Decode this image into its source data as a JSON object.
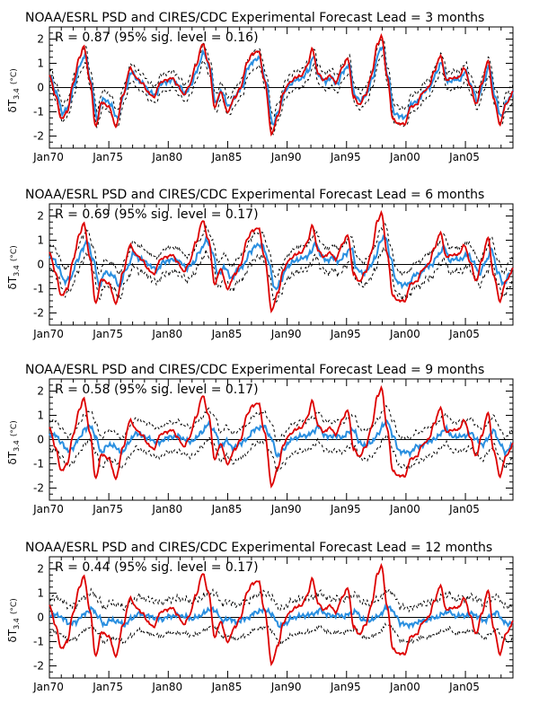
{
  "chart_data": [
    {
      "type": "line",
      "title": "NOAA/ESRL PSD and CIRES/CDC Experimental Forecast Lead = 3 months",
      "annotation": "R = 0.87 (95% sig. level = 0.16)",
      "ylabel_main": "δT",
      "ylabel_sub": "3.4",
      "ylabel_unit": "(°C)",
      "xlabel": "",
      "xlim": [
        1970,
        2009
      ],
      "ylim": [
        -2.5,
        2.5
      ],
      "x_ticks": [
        1970,
        1975,
        1980,
        1985,
        1990,
        1995,
        2000,
        2005
      ],
      "x_tick_labels": [
        "Jan70",
        "Jan75",
        "Jan80",
        "Jan85",
        "Jan90",
        "Jan95",
        "Jan00",
        "Jan05"
      ],
      "y_ticks": [
        -2,
        -1,
        0,
        1,
        2
      ],
      "y_tick_labels": [
        "-2",
        "-1",
        "0",
        "1",
        "2"
      ],
      "series": [
        {
          "role": "observed",
          "color": "#dd0000",
          "style": "solid"
        },
        {
          "role": "forecast",
          "color": "#2a8fe0",
          "style": "solid"
        },
        {
          "role": "forecast_spread",
          "color": "#000000",
          "style": "dashed"
        }
      ]
    },
    {
      "type": "line",
      "title": "NOAA/ESRL PSD and CIRES/CDC Experimental Forecast Lead = 6 months",
      "annotation": "R = 0.69 (95% sig. level = 0.17)",
      "ylabel_main": "δT",
      "ylabel_sub": "3.4",
      "ylabel_unit": "(°C)",
      "xlabel": "",
      "xlim": [
        1970,
        2009
      ],
      "ylim": [
        -2.5,
        2.5
      ],
      "x_ticks": [
        1970,
        1975,
        1980,
        1985,
        1990,
        1995,
        2000,
        2005
      ],
      "x_tick_labels": [
        "Jan70",
        "Jan75",
        "Jan80",
        "Jan85",
        "Jan90",
        "Jan95",
        "Jan00",
        "Jan05"
      ],
      "y_ticks": [
        -2,
        -1,
        0,
        1,
        2
      ],
      "y_tick_labels": [
        "-2",
        "-1",
        "0",
        "1",
        "2"
      ],
      "series": [
        {
          "role": "observed",
          "color": "#dd0000",
          "style": "solid"
        },
        {
          "role": "forecast",
          "color": "#2a8fe0",
          "style": "solid"
        },
        {
          "role": "forecast_spread",
          "color": "#000000",
          "style": "dashed"
        }
      ]
    },
    {
      "type": "line",
      "title": "NOAA/ESRL PSD and CIRES/CDC Experimental Forecast Lead = 9 months",
      "annotation": "R = 0.58 (95% sig. level = 0.17)",
      "ylabel_main": "δT",
      "ylabel_sub": "3.4",
      "ylabel_unit": "(°C)",
      "xlabel": "",
      "xlim": [
        1970,
        2009
      ],
      "ylim": [
        -2.5,
        2.5
      ],
      "x_ticks": [
        1970,
        1975,
        1980,
        1985,
        1990,
        1995,
        2000,
        2005
      ],
      "x_tick_labels": [
        "Jan70",
        "Jan75",
        "Jan80",
        "Jan85",
        "Jan90",
        "Jan95",
        "Jan00",
        "Jan05"
      ],
      "y_ticks": [
        -2,
        -1,
        0,
        1,
        2
      ],
      "y_tick_labels": [
        "-2",
        "-1",
        "0",
        "1",
        "2"
      ],
      "series": [
        {
          "role": "observed",
          "color": "#dd0000",
          "style": "solid"
        },
        {
          "role": "forecast",
          "color": "#2a8fe0",
          "style": "solid"
        },
        {
          "role": "forecast_spread",
          "color": "#000000",
          "style": "dashed"
        }
      ]
    },
    {
      "type": "line",
      "title": "NOAA/ESRL PSD and CIRES/CDC Experimental Forecast Lead = 12 months",
      "annotation": "R = 0.44 (95% sig. level = 0.17)",
      "ylabel_main": "δT",
      "ylabel_sub": "3.4",
      "ylabel_unit": "(°C)",
      "xlabel": "",
      "xlim": [
        1970,
        2009
      ],
      "ylim": [
        -2.5,
        2.5
      ],
      "x_ticks": [
        1970,
        1975,
        1980,
        1985,
        1990,
        1995,
        2000,
        2005
      ],
      "x_tick_labels": [
        "Jan70",
        "Jan75",
        "Jan80",
        "Jan85",
        "Jan90",
        "Jan95",
        "Jan00",
        "Jan05"
      ],
      "y_ticks": [
        -2,
        -1,
        0,
        1,
        2
      ],
      "y_tick_labels": [
        "-2",
        "-1",
        "0",
        "1",
        "2"
      ],
      "series": [
        {
          "role": "observed",
          "color": "#dd0000",
          "style": "solid"
        },
        {
          "role": "forecast",
          "color": "#2a8fe0",
          "style": "solid"
        },
        {
          "role": "forecast_spread",
          "color": "#000000",
          "style": "dashed"
        }
      ]
    }
  ],
  "observed": {
    "anchors": [
      [
        1970.0,
        0.5
      ],
      [
        1970.5,
        -0.3
      ],
      [
        1971.0,
        -1.3
      ],
      [
        1971.5,
        -1.0
      ],
      [
        1972.0,
        0.2
      ],
      [
        1972.5,
        1.2
      ],
      [
        1972.9,
        1.7
      ],
      [
        1973.4,
        0.3
      ],
      [
        1973.9,
        -1.6
      ],
      [
        1974.4,
        -0.6
      ],
      [
        1975.0,
        -0.8
      ],
      [
        1975.6,
        -1.6
      ],
      [
        1976.2,
        -0.3
      ],
      [
        1976.8,
        0.8
      ],
      [
        1977.3,
        0.4
      ],
      [
        1977.8,
        0.2
      ],
      [
        1978.3,
        -0.2
      ],
      [
        1978.8,
        -0.4
      ],
      [
        1979.3,
        0.2
      ],
      [
        1979.8,
        0.3
      ],
      [
        1980.3,
        0.4
      ],
      [
        1980.8,
        0.1
      ],
      [
        1981.3,
        -0.3
      ],
      [
        1981.8,
        0.1
      ],
      [
        1982.3,
        0.9
      ],
      [
        1982.9,
        1.8
      ],
      [
        1983.4,
        1.0
      ],
      [
        1983.9,
        -0.8
      ],
      [
        1984.4,
        -0.2
      ],
      [
        1985.0,
        -1.0
      ],
      [
        1985.6,
        -0.4
      ],
      [
        1986.1,
        0.0
      ],
      [
        1986.6,
        1.0
      ],
      [
        1987.1,
        1.4
      ],
      [
        1987.6,
        1.5
      ],
      [
        1988.1,
        0.3
      ],
      [
        1988.7,
        -1.9
      ],
      [
        1989.2,
        -1.2
      ],
      [
        1989.7,
        -0.2
      ],
      [
        1990.2,
        0.2
      ],
      [
        1990.7,
        0.4
      ],
      [
        1991.2,
        0.5
      ],
      [
        1991.7,
        0.9
      ],
      [
        1992.1,
        1.6
      ],
      [
        1992.6,
        0.6
      ],
      [
        1993.1,
        0.3
      ],
      [
        1993.6,
        0.5
      ],
      [
        1994.1,
        0.2
      ],
      [
        1994.6,
        0.8
      ],
      [
        1995.1,
        1.2
      ],
      [
        1995.6,
        -0.4
      ],
      [
        1996.1,
        -0.7
      ],
      [
        1996.6,
        -0.3
      ],
      [
        1997.1,
        0.5
      ],
      [
        1997.6,
        1.8
      ],
      [
        1997.95,
        2.1
      ],
      [
        1998.4,
        0.5
      ],
      [
        1998.9,
        -1.3
      ],
      [
        1999.4,
        -1.5
      ],
      [
        1999.9,
        -1.5
      ],
      [
        2000.4,
        -0.8
      ],
      [
        2000.9,
        -0.7
      ],
      [
        2001.4,
        -0.2
      ],
      [
        2001.9,
        0.0
      ],
      [
        2002.4,
        0.7
      ],
      [
        2002.9,
        1.3
      ],
      [
        2003.4,
        0.3
      ],
      [
        2003.9,
        0.4
      ],
      [
        2004.4,
        0.4
      ],
      [
        2004.9,
        0.8
      ],
      [
        2005.4,
        0.1
      ],
      [
        2005.9,
        -0.7
      ],
      [
        2006.4,
        0.2
      ],
      [
        2006.9,
        1.1
      ],
      [
        2007.4,
        -0.5
      ],
      [
        2007.9,
        -1.5
      ],
      [
        2008.4,
        -0.7
      ],
      [
        2008.8,
        -0.4
      ],
      [
        2009.0,
        -0.1
      ]
    ]
  },
  "forecast": {
    "amplitude_by_lead": [
      0.8,
      0.55,
      0.35,
      0.2
    ],
    "lag_years_by_lead": [
      0.1,
      0.3,
      0.5,
      0.7
    ],
    "spread_by_lead": [
      0.35,
      0.5,
      0.6,
      0.7
    ]
  }
}
